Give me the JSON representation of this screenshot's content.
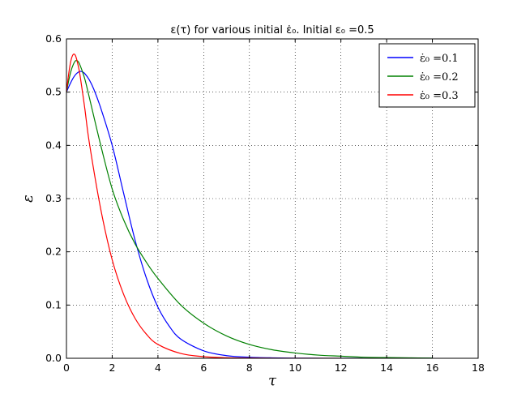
{
  "chart_data": {
    "type": "line",
    "title": "ε(τ) for various initial ε̇₀. Initial ε₀ =0.5",
    "xlabel": "τ",
    "ylabel": "ε",
    "xlim": [
      0,
      18
    ],
    "ylim": [
      0,
      0.6
    ],
    "xticks": [
      "0",
      "2",
      "4",
      "6",
      "8",
      "10",
      "12",
      "14",
      "16",
      "18"
    ],
    "yticks": [
      "0.0",
      "0.1",
      "0.2",
      "0.3",
      "0.4",
      "0.5",
      "0.6"
    ],
    "grid": true,
    "legend_position": "top-right",
    "series": [
      {
        "name": "ε̇₀ =0.1",
        "color": "#0000ff",
        "x": [
          0,
          0.1,
          0.2,
          0.3,
          0.4,
          0.5,
          0.6,
          0.7,
          0.8,
          1.0,
          1.2,
          1.5,
          2.0,
          2.5,
          3.0,
          3.5,
          4.0,
          4.5,
          5.0,
          6.0,
          7.0,
          8.0,
          9.0,
          10.0,
          12.0,
          14.0,
          16.0
        ],
        "y": [
          0.5,
          0.51,
          0.519,
          0.527,
          0.533,
          0.537,
          0.539,
          0.538,
          0.535,
          0.523,
          0.505,
          0.47,
          0.4,
          0.31,
          0.222,
          0.15,
          0.096,
          0.06,
          0.036,
          0.014,
          0.005,
          0.002,
          0.0008,
          0.0003,
          0.0,
          0.0,
          0.0
        ]
      },
      {
        "name": "ε̇₀ =0.2",
        "color": "#008000",
        "x": [
          0,
          0.1,
          0.2,
          0.3,
          0.4,
          0.5,
          0.6,
          0.8,
          1.0,
          1.5,
          2.0,
          2.5,
          3.0,
          3.5,
          4.0,
          5.0,
          6.0,
          7.0,
          8.0,
          9.0,
          10.0,
          11.0,
          12.0,
          13.0,
          14.0,
          15.0,
          16.0
        ],
        "y": [
          0.5,
          0.522,
          0.54,
          0.552,
          0.559,
          0.558,
          0.55,
          0.525,
          0.49,
          0.4,
          0.318,
          0.26,
          0.215,
          0.18,
          0.15,
          0.1,
          0.066,
          0.042,
          0.026,
          0.016,
          0.01,
          0.006,
          0.004,
          0.002,
          0.0013,
          0.0008,
          0.0004
        ]
      },
      {
        "name": "ε̇₀ =0.3",
        "color": "#ff0000",
        "x": [
          0,
          0.1,
          0.2,
          0.3,
          0.4,
          0.5,
          0.6,
          0.8,
          1.0,
          1.5,
          2.0,
          2.5,
          3.0,
          3.5,
          4.0,
          5.0,
          6.0,
          7.0,
          8.0,
          10.0,
          12.0
        ],
        "y": [
          0.5,
          0.535,
          0.56,
          0.571,
          0.568,
          0.552,
          0.53,
          0.47,
          0.405,
          0.28,
          0.185,
          0.12,
          0.075,
          0.045,
          0.026,
          0.009,
          0.003,
          0.001,
          0.0004,
          0.0,
          0.0
        ]
      }
    ]
  }
}
